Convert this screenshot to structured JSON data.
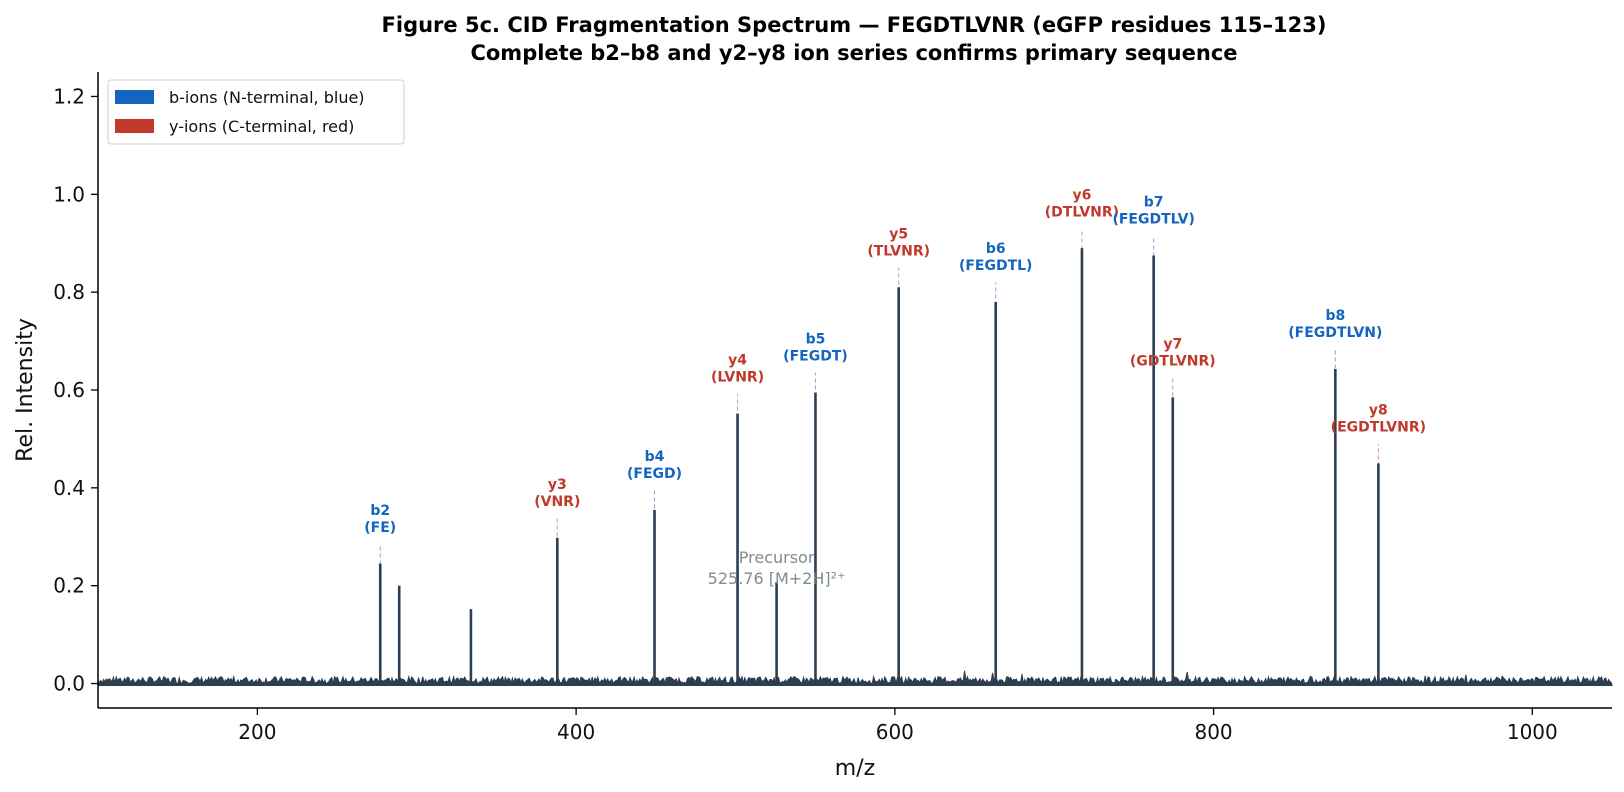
{
  "chart_data": {
    "type": "bar",
    "title": "Figure 5c.  CID Fragmentation Spectrum — FEGDTLVNR  (eGFP residues 115–123)",
    "subtitle": "Complete b2–b8 and y2–y8 ion series confirms primary sequence",
    "xlabel": "m/z",
    "ylabel": "Rel. Intensity",
    "xlim": [
      100,
      1050
    ],
    "ylim": [
      -0.05,
      1.25
    ],
    "xticks": [
      200,
      400,
      600,
      800,
      1000
    ],
    "yticks": [
      0.0,
      0.2,
      0.4,
      0.6,
      0.8,
      1.0,
      1.2
    ],
    "xtick_labels": [
      "200",
      "400",
      "600",
      "800",
      "1000"
    ],
    "ytick_labels": [
      "0.0",
      "0.2",
      "0.4",
      "0.6",
      "0.8",
      "1.0",
      "1.2"
    ],
    "legend": {
      "placement": "top-left",
      "entries": [
        {
          "label": "b-ions (N-terminal, blue)",
          "color": "#1565c0"
        },
        {
          "label": "y-ions (C-terminal, red)",
          "color": "#c0392b"
        }
      ]
    },
    "peaks": [
      {
        "mz": 277.1,
        "intensity": 0.245,
        "type": "b",
        "ion": "b2",
        "fragment": "(FE)"
      },
      {
        "mz": 289.0,
        "intensity": 0.2,
        "type": "other"
      },
      {
        "mz": 334.0,
        "intensity": 0.152,
        "type": "other"
      },
      {
        "mz": 388.2,
        "intensity": 0.298,
        "type": "y",
        "ion": "y3",
        "fragment": "(VNR)"
      },
      {
        "mz": 449.2,
        "intensity": 0.355,
        "type": "b",
        "ion": "b4",
        "fragment": "(FEGD)"
      },
      {
        "mz": 501.3,
        "intensity": 0.552,
        "type": "y",
        "ion": "y4",
        "fragment": "(LVNR)"
      },
      {
        "mz": 525.8,
        "intensity": 0.207,
        "type": "precursor"
      },
      {
        "mz": 550.2,
        "intensity": 0.595,
        "type": "b",
        "ion": "b5",
        "fragment": "(FEGDT)"
      },
      {
        "mz": 602.4,
        "intensity": 0.81,
        "type": "y",
        "ion": "y5",
        "fragment": "(TLVNR)"
      },
      {
        "mz": 663.3,
        "intensity": 0.78,
        "type": "b",
        "ion": "b6",
        "fragment": "(FEGDTL)"
      },
      {
        "mz": 717.4,
        "intensity": 0.89,
        "type": "y",
        "ion": "y6",
        "fragment": "(DTLVNR)"
      },
      {
        "mz": 762.4,
        "intensity": 0.875,
        "type": "b",
        "ion": "b7",
        "fragment": "(FEGDTLV)"
      },
      {
        "mz": 774.4,
        "intensity": 0.585,
        "type": "y",
        "ion": "y7",
        "fragment": "(GDTLVNR)"
      },
      {
        "mz": 876.4,
        "intensity": 0.643,
        "type": "b",
        "ion": "b8",
        "fragment": "(FEGDTLVN)"
      },
      {
        "mz": 903.4,
        "intensity": 0.45,
        "type": "y",
        "ion": "y8",
        "fragment": "(EGDTLVNR)"
      }
    ],
    "annotations": {
      "precursor": {
        "line1": "Precursor",
        "line2": "525.76 [M+2H]²⁺",
        "mz": 525.8,
        "y": 0.265
      }
    },
    "grid": false
  },
  "colors": {
    "b_ion": "#1565c0",
    "y_ion": "#c0392b",
    "peak": "#2c3e50",
    "precursor_text": "#7f8c8d",
    "axis": "#000000"
  }
}
